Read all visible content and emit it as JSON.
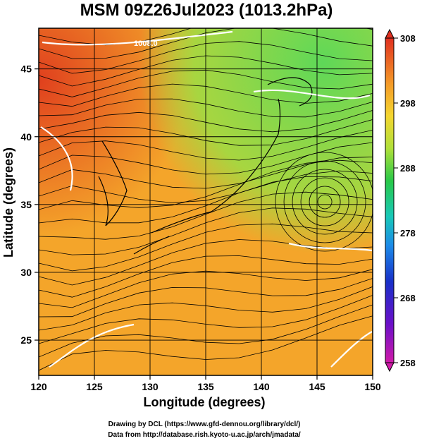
{
  "title": "MSM 09Z26Jul2023 (1013.2hPa)",
  "x_axis": {
    "label": "Longitude (degrees)",
    "range": [
      120,
      150
    ],
    "ticks": [
      "120",
      "125",
      "130",
      "135",
      "140",
      "145",
      "150"
    ]
  },
  "y_axis": {
    "label": "Latitude  (degrees)",
    "range": [
      22.4,
      48
    ],
    "ticks": [
      "25",
      "30",
      "35",
      "40",
      "45"
    ]
  },
  "colorbar": {
    "range": [
      258,
      308
    ],
    "ticks": [
      "308",
      "298",
      "288",
      "278",
      "268",
      "258"
    ]
  },
  "map": {
    "fields": [
      "temperature shading",
      "streamlines",
      "isobar contours",
      "coastlines"
    ],
    "contour_label": "1008.0",
    "low_center_lon_lat": [
      145.7,
      35.2
    ],
    "colors": {
      "warm": "#e86a1e",
      "mid": "#f4a52a",
      "cool": "#7ed44e",
      "streamline": "#000000",
      "contour": "#ffffff",
      "coast": "#000000"
    }
  },
  "credits": {
    "line1": "Drawing by DCL (https://www.gfd-dennou.org/library/dcl/)",
    "line2": "Data from http://database.rish.kyoto-u.ac.jp/arch/jmadata/"
  }
}
